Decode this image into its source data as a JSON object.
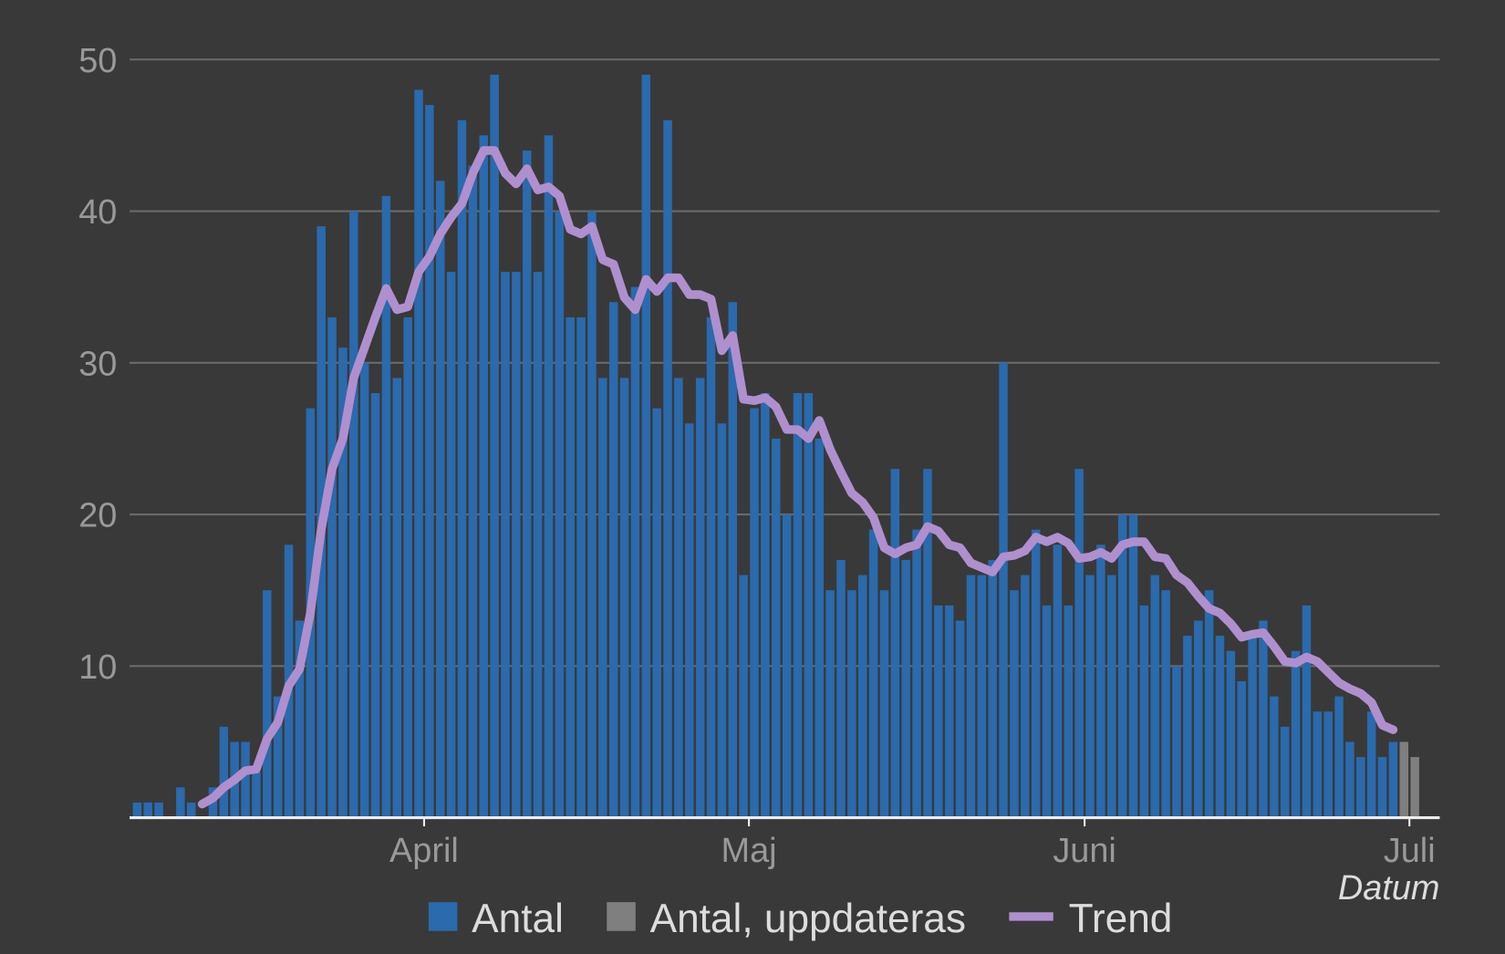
{
  "chart_data": {
    "type": "bar",
    "x_label": "Datum",
    "categories": [
      null,
      null,
      null,
      null,
      null,
      null,
      null,
      null,
      null,
      null,
      null,
      null,
      null,
      null,
      null,
      null,
      null,
      null,
      null,
      null,
      null,
      null,
      null,
      null,
      null,
      null,
      null,
      null,
      null,
      null,
      null,
      null,
      null,
      null,
      null,
      null,
      null,
      null,
      null,
      null,
      null,
      null,
      null,
      null,
      null,
      null,
      null,
      null,
      null,
      null,
      null,
      null,
      null,
      null,
      null,
      null,
      null,
      null,
      null,
      null,
      null,
      null,
      null,
      null,
      null,
      null,
      null,
      null,
      null,
      null,
      null,
      null,
      null,
      null,
      null,
      null,
      null,
      null,
      null,
      null,
      null,
      null,
      null,
      null,
      null,
      null,
      null,
      null,
      null,
      null,
      null,
      null,
      null,
      null,
      null,
      null,
      null,
      null,
      null,
      null,
      null,
      null,
      null,
      null,
      null,
      null,
      null,
      null,
      null,
      null,
      null,
      null,
      null,
      null,
      null,
      null,
      null,
      null,
      null
    ],
    "xlim": [
      -0.7,
      120.3
    ],
    "xticks": [
      {
        "value": 26.5,
        "label": "April"
      },
      {
        "value": 56.5,
        "label": "Maj"
      },
      {
        "value": 87.5,
        "label": "Juni"
      },
      {
        "value": 117.5,
        "label": "Juli"
      }
    ],
    "ylim": [
      0,
      50
    ],
    "yticks": [
      10,
      20,
      30,
      40,
      50
    ],
    "grid": true,
    "series": [
      {
        "name": "Antal",
        "type": "bar",
        "color": "#2a6aad",
        "values": [
          1,
          1,
          1,
          0,
          2,
          1,
          0,
          2,
          6,
          5,
          5,
          3,
          15,
          8,
          18,
          13,
          27,
          39,
          33,
          31,
          40,
          30,
          28,
          41,
          29,
          33,
          48,
          47,
          42,
          36,
          46,
          43,
          45,
          49,
          36,
          36,
          44,
          36,
          45,
          40,
          33,
          33,
          40,
          29,
          34,
          29,
          35,
          49,
          27,
          46,
          29,
          26,
          29,
          33,
          26,
          34,
          16,
          27,
          28,
          25,
          20,
          28,
          28,
          25,
          15,
          17,
          15,
          16,
          19,
          15,
          23,
          17,
          19,
          23,
          14,
          14,
          13,
          16,
          16,
          17,
          30,
          15,
          16,
          19,
          14,
          18,
          14,
          23,
          16,
          18,
          16,
          20,
          20,
          14,
          16,
          15,
          10,
          12,
          13,
          15,
          12,
          11,
          9,
          12,
          13,
          8,
          6,
          11,
          14,
          7,
          7,
          8,
          5,
          4,
          7,
          4,
          5,
          null,
          null
        ]
      },
      {
        "name": "Antal, uppdateras",
        "type": "bar",
        "color": "#7f7f7f",
        "values": [
          null,
          null,
          null,
          null,
          null,
          null,
          null,
          null,
          null,
          null,
          null,
          null,
          null,
          null,
          null,
          null,
          null,
          null,
          null,
          null,
          null,
          null,
          null,
          null,
          null,
          null,
          null,
          null,
          null,
          null,
          null,
          null,
          null,
          null,
          null,
          null,
          null,
          null,
          null,
          null,
          null,
          null,
          null,
          null,
          null,
          null,
          null,
          null,
          null,
          null,
          null,
          null,
          null,
          null,
          null,
          null,
          null,
          null,
          null,
          null,
          null,
          null,
          null,
          null,
          null,
          null,
          null,
          null,
          null,
          null,
          null,
          null,
          null,
          null,
          null,
          null,
          null,
          null,
          null,
          null,
          null,
          null,
          null,
          null,
          null,
          null,
          null,
          null,
          null,
          null,
          null,
          null,
          null,
          null,
          null,
          null,
          null,
          null,
          null,
          null,
          null,
          null,
          null,
          null,
          null,
          null,
          null,
          null,
          null,
          null,
          null,
          null,
          null,
          null,
          null,
          null,
          null,
          5,
          4
        ]
      },
      {
        "name": "Trend",
        "type": "line",
        "color": "#b08fcf",
        "values": [
          null,
          null,
          null,
          null,
          null,
          null,
          0.9,
          1.3,
          2.0,
          2.5,
          3.1,
          3.2,
          5.2,
          6.3,
          8.7,
          9.8,
          13.5,
          19,
          23,
          25,
          29,
          31,
          33,
          34.9,
          33.5,
          33.7,
          36,
          37,
          38.5,
          39.6,
          40.5,
          42.5,
          44,
          44,
          42.5,
          41.8,
          42.8,
          41.4,
          41.6,
          41,
          38.8,
          38.5,
          39,
          36.8,
          36.5,
          34.3,
          33.5,
          35.5,
          34.7,
          35.6,
          35.6,
          34.5,
          34.5,
          34.2,
          30.8,
          31.8,
          27.6,
          27.5,
          27.7,
          27.1,
          25.6,
          25.6,
          25,
          26.2,
          24.3,
          22.8,
          21.4,
          20.8,
          19.8,
          17.8,
          17.4,
          17.8,
          18,
          19.2,
          18.9,
          18,
          17.8,
          16.8,
          16.5,
          16.2,
          17.2,
          17.3,
          17.6,
          18.5,
          18.2,
          18.5,
          18.1,
          17.1,
          17.2,
          17.5,
          17.1,
          18,
          18.2,
          18.2,
          17.2,
          17.1,
          16,
          15.5,
          14.6,
          13.8,
          13.5,
          12.8,
          11.9,
          12.1,
          12.2,
          11.3,
          10.3,
          10.2,
          10.6,
          10.3,
          9.6,
          8.9,
          8.5,
          8.2,
          7.6,
          6.1,
          5.8,
          null,
          null
        ]
      }
    ]
  }
}
